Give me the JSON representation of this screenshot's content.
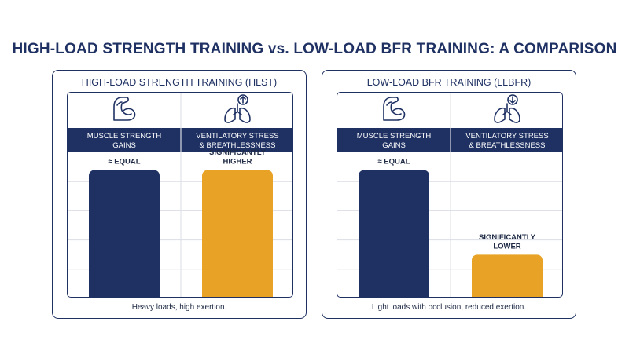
{
  "title": "HIGH-LOAD STRENGTH TRAINING vs. LOW-LOAD BFR TRAINING: A COMPARISON",
  "colors": {
    "navy": "#1f3163",
    "gold": "#e8a326",
    "grid": "#d9dde4"
  },
  "chart_data": [
    {
      "type": "bar",
      "title": "HIGH-LOAD STRENGTH TRAINING (HLST)",
      "categories": [
        {
          "line1": "MUSCLE STRENGTH",
          "line2": "GAINS",
          "icon": "flexed-arm-icon"
        },
        {
          "line1": "VENTILATORY STRESS",
          "line2": "& BREATHLESSNESS",
          "icon": "lungs-arrow-up-icon"
        }
      ],
      "values": [
        0.91,
        0.91
      ],
      "value_labels": [
        [
          "≈ EQUAL"
        ],
        [
          "SIGNIFICANTLY",
          "HIGHER"
        ]
      ],
      "bar_colors": [
        "#1f3163",
        "#e8a326"
      ],
      "caption": "Heavy loads, high exertion.",
      "grid": true
    },
    {
      "type": "bar",
      "title": "LOW-LOAD BFR TRAINING (LLBFR)",
      "categories": [
        {
          "line1": "MUSCLE STRENGTH",
          "line2": "GAINS",
          "icon": "flexed-arm-icon"
        },
        {
          "line1": "VENTILATORY STRESS",
          "line2": "& BREATHLESSNESS",
          "icon": "lungs-arrow-down-icon"
        }
      ],
      "values": [
        0.91,
        0.31
      ],
      "value_labels": [
        [
          "≈ EQUAL"
        ],
        [
          "SIGNIFICANTLY",
          "LOWER"
        ]
      ],
      "bar_colors": [
        "#1f3163",
        "#e8a326"
      ],
      "caption": "Light loads with occlusion, reduced exertion.",
      "grid": true
    }
  ]
}
